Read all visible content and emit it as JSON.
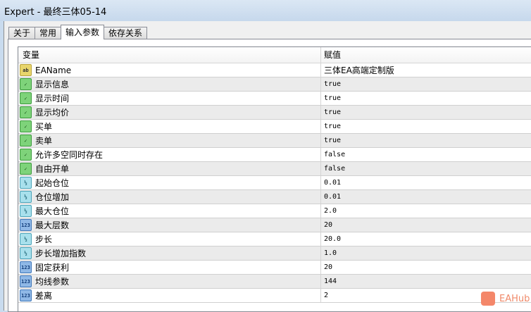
{
  "window": {
    "title": "Expert - 最终三体05-14"
  },
  "tabs": [
    {
      "label": "关于"
    },
    {
      "label": "常用"
    },
    {
      "label": "输入参数",
      "active": true
    },
    {
      "label": "依存关系"
    }
  ],
  "table": {
    "headers": [
      "变量",
      "赋值"
    ],
    "rows": [
      {
        "icon": "string-icon",
        "name": "EAName",
        "value": "三体EA高端定制版"
      },
      {
        "icon": "bool-icon",
        "name": "显示信息",
        "value": "true"
      },
      {
        "icon": "bool-icon",
        "name": "显示时间",
        "value": "true"
      },
      {
        "icon": "bool-icon",
        "name": "显示均价",
        "value": "true"
      },
      {
        "icon": "bool-icon",
        "name": "买单",
        "value": "true"
      },
      {
        "icon": "bool-icon",
        "name": "卖单",
        "value": "true"
      },
      {
        "icon": "bool-icon",
        "name": "允许多空同时存在",
        "value": "false"
      },
      {
        "icon": "bool-icon",
        "name": "自由开单",
        "value": "false"
      },
      {
        "icon": "double-icon",
        "name": "起始仓位",
        "value": "0.01"
      },
      {
        "icon": "double-icon",
        "name": "仓位增加",
        "value": "0.01"
      },
      {
        "icon": "double-icon",
        "name": "最大仓位",
        "value": "2.0"
      },
      {
        "icon": "integer-icon",
        "name": "最大层数",
        "value": "20"
      },
      {
        "icon": "double-icon",
        "name": "步长",
        "value": "20.0"
      },
      {
        "icon": "double-icon",
        "name": "步长增加指数",
        "value": "1.0"
      },
      {
        "icon": "integer-icon",
        "name": "固定获利",
        "value": "20"
      },
      {
        "icon": "integer-icon",
        "name": "均线参数",
        "value": "144"
      },
      {
        "icon": "integer-icon",
        "name": "差离",
        "value": "2"
      }
    ]
  },
  "icon_glyphs": {
    "string-icon": "ab",
    "bool-icon": "✓",
    "double-icon": "½",
    "integer-icon": "123"
  },
  "watermark": {
    "text": "EAHub"
  }
}
